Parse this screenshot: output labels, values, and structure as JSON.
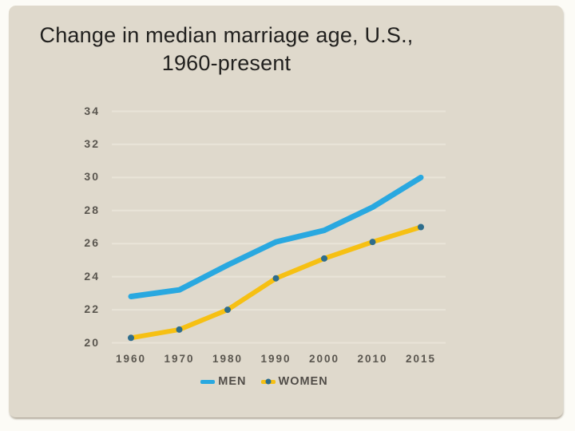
{
  "slide": {
    "title_lines": [
      "Change in median marriage age, U.S.,",
      "1960-present"
    ]
  },
  "chart_data": {
    "type": "line",
    "title": "Change in median marriage age, U.S., 1960-present",
    "categories": [
      "1960",
      "1970",
      "1980",
      "1990",
      "2000",
      "2010",
      "2015"
    ],
    "series": [
      {
        "name": "MEN",
        "color": "#29a8e0",
        "marker": "none",
        "marker_color": null,
        "values": [
          22.8,
          23.2,
          24.7,
          26.1,
          26.8,
          28.2,
          30.0
        ]
      },
      {
        "name": "WOMEN",
        "color": "#f6c013",
        "marker": "dot",
        "marker_color": "#2e6d8c",
        "values": [
          20.3,
          20.8,
          22.0,
          23.9,
          25.1,
          26.1,
          27.0
        ]
      }
    ],
    "xlabel": "",
    "ylabel": "",
    "ylim": [
      20,
      34
    ],
    "yticks": [
      20,
      22,
      24,
      26,
      28,
      30,
      32,
      34
    ],
    "grid": "horizontal",
    "legend_position": "bottom",
    "colors": {
      "background": "#dfd9cc",
      "gridline": "#e9e4d8",
      "tick_text": "#5a564f",
      "title_text": "#22211f"
    }
  }
}
